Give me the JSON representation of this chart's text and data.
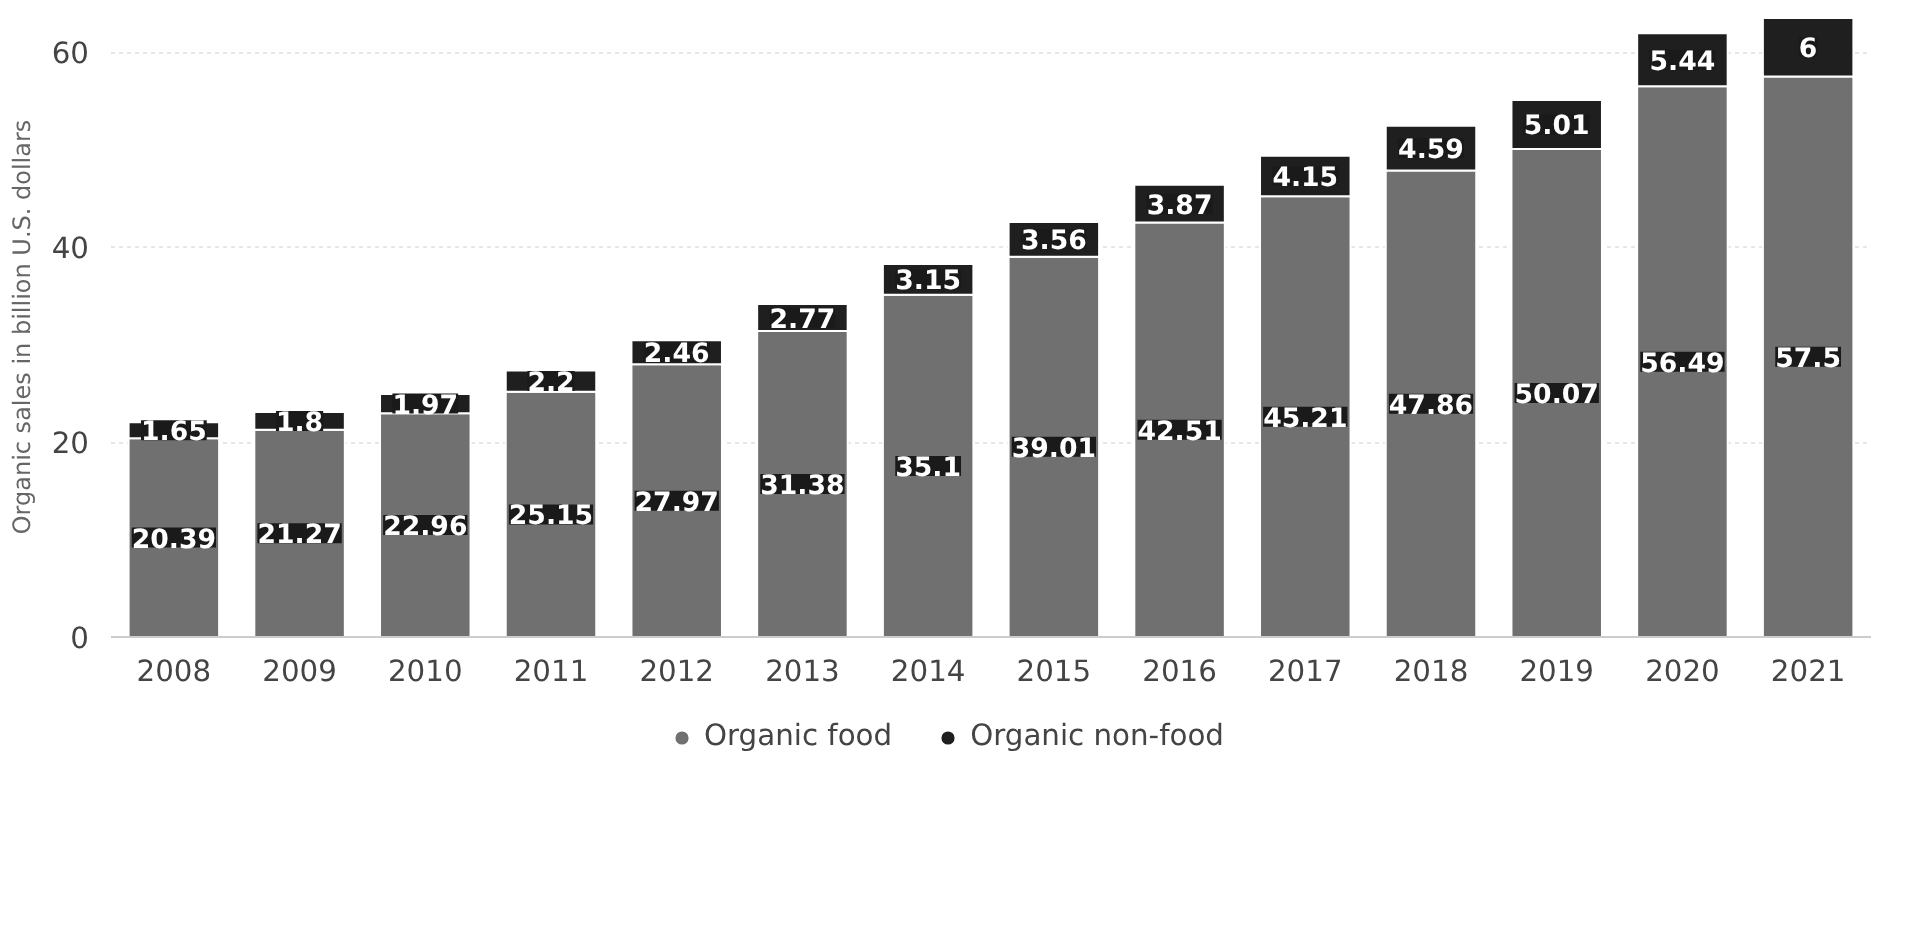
{
  "chart_data": {
    "type": "bar",
    "stacked": true,
    "ylabel": "Organic sales in billion U.S. dollars",
    "categories": [
      "2008",
      "2009",
      "2010",
      "2011",
      "2012",
      "2013",
      "2014",
      "2015",
      "2016",
      "2017",
      "2018",
      "2019",
      "2020",
      "2021"
    ],
    "series": [
      {
        "name": "Organic food",
        "color": "#707070",
        "values": [
          20.39,
          21.27,
          22.96,
          25.15,
          27.97,
          31.38,
          35.1,
          39.01,
          42.51,
          45.21,
          47.86,
          50.07,
          56.49,
          57.5
        ]
      },
      {
        "name": "Organic non-food",
        "color": "#1f1f1f",
        "values": [
          1.65,
          1.8,
          1.97,
          2.2,
          2.46,
          2.77,
          3.15,
          3.56,
          3.87,
          4.15,
          4.59,
          5.01,
          5.44,
          6
        ]
      }
    ],
    "ylim": [
      0,
      63.6
    ],
    "yticks": [
      0,
      20,
      40,
      60
    ],
    "grid": "y",
    "legend": "bottom",
    "data_labels": true
  }
}
